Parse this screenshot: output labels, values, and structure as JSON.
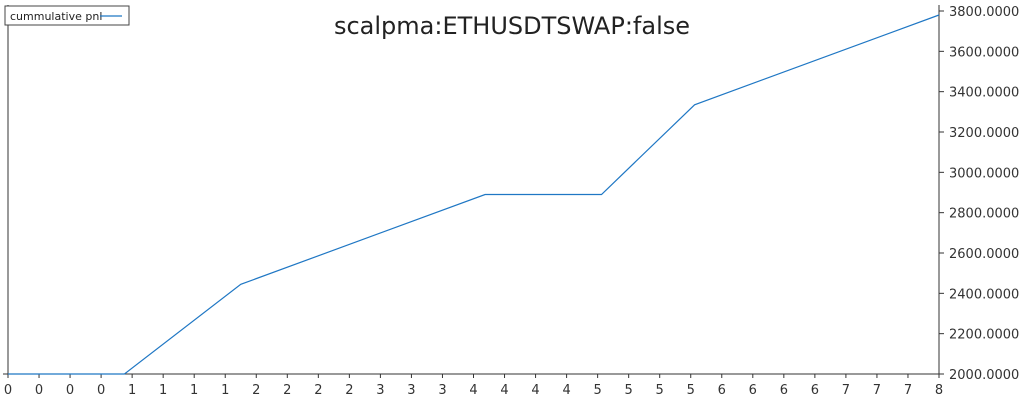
{
  "chart_data": {
    "type": "line",
    "title": "scalpma:ETHUSDTSWAP:false",
    "xlabel": "",
    "ylabel": "",
    "legend": {
      "placement": "top-left",
      "entries": [
        "cummulative pnl"
      ]
    },
    "grid": false,
    "ylim": [
      2000,
      3800
    ],
    "xlim": [
      0,
      8
    ],
    "y_axis_side": "right",
    "x_tick_labels": [
      "0",
      "0",
      "0",
      "0",
      "1",
      "1",
      "1",
      "1",
      "2",
      "2",
      "2",
      "2",
      "3",
      "3",
      "3",
      "4",
      "4",
      "4",
      "4",
      "5",
      "5",
      "5",
      "5",
      "6",
      "6",
      "6",
      "6",
      "7",
      "7",
      "7",
      "8"
    ],
    "y_tick_labels": [
      "2000.0000",
      "2200.0000",
      "2400.0000",
      "2600.0000",
      "2800.0000",
      "3000.0000",
      "3200.0000",
      "3400.0000",
      "3600.0000",
      "3800.0000"
    ],
    "series": [
      {
        "name": "cummulative pnl",
        "color": "#1f77c4",
        "x": [
          0,
          1.0,
          2.0,
          4.1,
          5.1,
          5.9,
          8.0
        ],
        "y": [
          2000,
          2000,
          2445,
          2890,
          2890,
          3335,
          3780
        ]
      }
    ]
  }
}
